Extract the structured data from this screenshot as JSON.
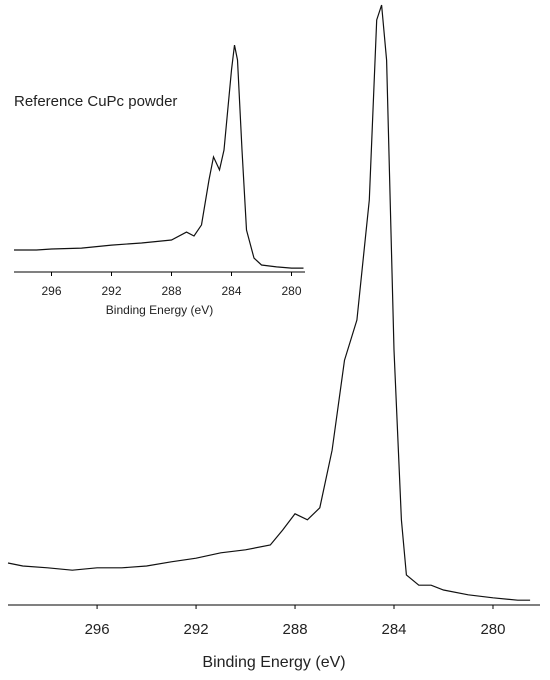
{
  "chart_data": [
    {
      "type": "line",
      "xlabel": "Binding Energy (eV)",
      "xlim": [
        299.6,
        278.1
      ],
      "xticks": [
        296,
        292,
        288,
        284,
        280
      ],
      "ylim": [
        0,
        100
      ],
      "series": [
        {
          "color": "#111111",
          "x": [
            299.6,
            299,
            298,
            297,
            296,
            295,
            294,
            293,
            292,
            291,
            290,
            289,
            288.5,
            288,
            287.5,
            287,
            286.5,
            286,
            285.5,
            285,
            284.7,
            284.5,
            284.3,
            284,
            283.7,
            283.5,
            283,
            282.5,
            282,
            281,
            280,
            279,
            278.5
          ],
          "values": [
            7,
            6.5,
            6.2,
            5.8,
            6.2,
            6.2,
            6.5,
            7.2,
            7.8,
            8.7,
            9.2,
            10,
            12.5,
            15.2,
            14.2,
            16.2,
            25.8,
            40.8,
            47.5,
            67.5,
            97.5,
            100,
            90.8,
            42.5,
            14.2,
            5,
            3.3,
            3.3,
            2.5,
            1.7,
            1.2,
            0.8,
            0.8
          ]
        }
      ]
    },
    {
      "type": "line",
      "xlabel": "Binding Energy (eV)",
      "annotation": "Reference CuPc powder",
      "xlim": [
        298.5,
        279.1
      ],
      "xticks": [
        296,
        292,
        288,
        284,
        280
      ],
      "ylim": [
        0,
        100
      ],
      "series": [
        {
          "color": "#111111",
          "x": [
            298.5,
            297,
            296,
            294,
            292,
            290,
            288,
            287,
            286.5,
            286,
            285.5,
            285.2,
            284.8,
            284.5,
            284,
            283.8,
            283.6,
            283.3,
            283,
            282.5,
            282,
            281,
            280,
            279.2
          ],
          "values": [
            9.5,
            9.5,
            9.9,
            10.3,
            11.6,
            12.5,
            13.8,
            17.2,
            15.5,
            20.3,
            39.7,
            49.6,
            44,
            52.6,
            87.1,
            97.8,
            91.4,
            52.6,
            18.1,
            6,
            3,
            2.2,
            1.7,
            1.7
          ]
        }
      ]
    }
  ]
}
